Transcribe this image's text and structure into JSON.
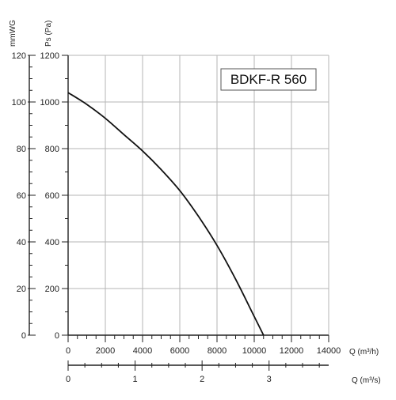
{
  "chart_data": {
    "type": "line",
    "title": "",
    "annotation": "BDKF-R 560",
    "grid": true,
    "legend": "none",
    "colors": {
      "curve": "#111111",
      "grid": "#b5b5b5",
      "axis": "#222222",
      "label_box": "#555555"
    },
    "left_axes": [
      {
        "label": "mmWG",
        "range": [
          0,
          120
        ],
        "ticks": [
          "0",
          "20",
          "40",
          "60",
          "80",
          "100",
          "120"
        ]
      },
      {
        "label": "Ps (Pa)",
        "range": [
          0,
          1200
        ],
        "ticks": [
          "0",
          "200",
          "400",
          "600",
          "800",
          "1000",
          "1200"
        ]
      }
    ],
    "bottom_axes": [
      {
        "label": "Q (m³/h)",
        "range": [
          0,
          14000
        ],
        "ticks": [
          "0",
          "2000",
          "4000",
          "6000",
          "8000",
          "10000",
          "12000",
          "14000"
        ]
      },
      {
        "label": "Q (m³/s)",
        "range": [
          0,
          3.89
        ],
        "ticks": [
          "0",
          "1",
          "2",
          "3"
        ]
      }
    ],
    "series": [
      {
        "x": [
          0,
          1000,
          2000,
          3000,
          4000,
          5000,
          6000,
          7000,
          8000,
          9000,
          10000,
          10500
        ],
        "y": [
          1040,
          990,
          930,
          860,
          790,
          710,
          620,
          510,
          385,
          240,
          80,
          0
        ]
      }
    ]
  }
}
